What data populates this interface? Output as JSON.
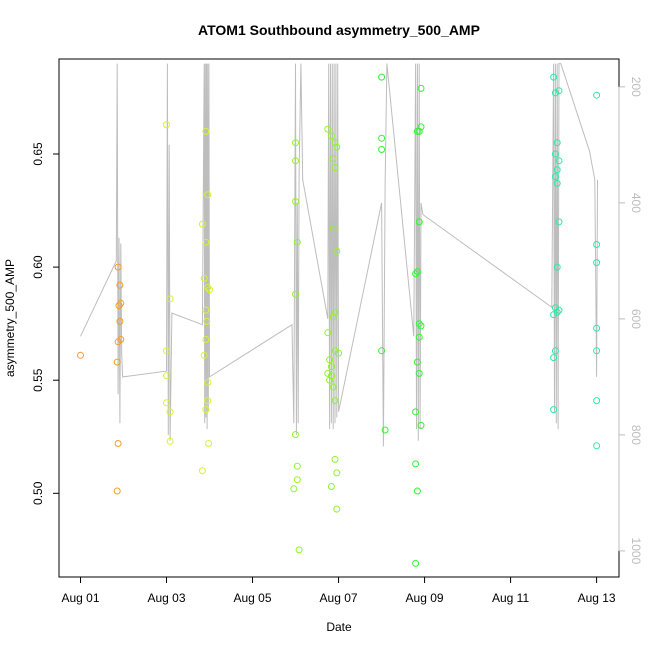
{
  "chart_data": {
    "type": "scatter",
    "title": "ATOM1 Southbound asymmetry_500_AMP",
    "xlabel": "Date",
    "ylabel": "asymmetry_500_AMP",
    "x_axis": {
      "type": "date",
      "range": [
        "2024-07-31T12:00",
        "2024-08-13T12:30"
      ],
      "ticks": [
        {
          "date": "2024-08-01",
          "label": "Aug 01"
        },
        {
          "date": "2024-08-03",
          "label": "Aug 03"
        },
        {
          "date": "2024-08-05",
          "label": "Aug 05"
        },
        {
          "date": "2024-08-07",
          "label": "Aug 07"
        },
        {
          "date": "2024-08-09",
          "label": "Aug 09"
        },
        {
          "date": "2024-08-11",
          "label": "Aug 11"
        },
        {
          "date": "2024-08-13",
          "label": "Aug 13"
        }
      ]
    },
    "y_axis": {
      "range": [
        0.463,
        0.692
      ],
      "ticks": [
        {
          "value": 0.5,
          "label": "0.50"
        },
        {
          "value": 0.55,
          "label": "0.55"
        },
        {
          "value": 0.6,
          "label": "0.60"
        },
        {
          "value": 0.65,
          "label": "0.65"
        }
      ]
    },
    "y2_axis": {
      "range": [
        1045,
        152
      ],
      "inverted": true,
      "color": "#bdbdbd",
      "ticks": [
        {
          "value": 200,
          "label": "200"
        },
        {
          "value": 400,
          "label": "400"
        },
        {
          "value": 600,
          "label": "600"
        },
        {
          "value": 800,
          "label": "800"
        },
        {
          "value": 1000,
          "label": "1000"
        }
      ]
    },
    "series": [
      {
        "color": "#f39c2e",
        "points": [
          [
            "2024-08-01T00:00",
            0.561
          ],
          [
            "2024-08-01T21:00",
            0.6
          ],
          [
            "2024-08-01T21:30",
            0.583
          ],
          [
            "2024-08-01T22:00",
            0.592
          ],
          [
            "2024-08-01T22:30",
            0.584
          ],
          [
            "2024-08-01T22:00",
            0.576
          ],
          [
            "2024-08-01T22:30",
            0.568
          ],
          [
            "2024-08-01T21:00",
            0.567
          ],
          [
            "2024-08-01T20:30",
            0.558
          ],
          [
            "2024-08-01T21:00",
            0.522
          ],
          [
            "2024-08-01T20:30",
            0.501
          ]
        ]
      },
      {
        "color": "#d4f52b",
        "points": [
          [
            "2024-08-03T00:00",
            0.663
          ],
          [
            "2024-08-03T00:00",
            0.563
          ],
          [
            "2024-08-03T00:00",
            0.552
          ],
          [
            "2024-08-03T02:00",
            0.586
          ],
          [
            "2024-08-03T00:00",
            0.54
          ],
          [
            "2024-08-03T02:00",
            0.536
          ],
          [
            "2024-08-03T02:00",
            0.523
          ],
          [
            "2024-08-03T20:00",
            0.51
          ],
          [
            "2024-08-03T22:00",
            0.66
          ],
          [
            "2024-08-03T23:00",
            0.632
          ],
          [
            "2024-08-03T20:00",
            0.619
          ],
          [
            "2024-08-03T22:00",
            0.611
          ],
          [
            "2024-08-03T21:00",
            0.595
          ],
          [
            "2024-08-03T23:00",
            0.591
          ],
          [
            "2024-08-03T22:00",
            0.581
          ],
          [
            "2024-08-03T22:30",
            0.576
          ],
          [
            "2024-08-03T22:00",
            0.568
          ],
          [
            "2024-08-03T21:00",
            0.561
          ],
          [
            "2024-08-03T23:00",
            0.549
          ],
          [
            "2024-08-03T23:00",
            0.541
          ],
          [
            "2024-08-03T22:00",
            0.537
          ],
          [
            "2024-08-03T23:30",
            0.522
          ],
          [
            "2024-08-04T00:00",
            0.59
          ]
        ]
      },
      {
        "color": "#8ff42b",
        "points": [
          [
            "2024-08-06T00:00",
            0.655
          ],
          [
            "2024-08-06T00:00",
            0.647
          ],
          [
            "2024-08-06T00:00",
            0.629
          ],
          [
            "2024-08-06T01:00",
            0.611
          ],
          [
            "2024-08-06T00:00",
            0.588
          ],
          [
            "2024-08-06T00:00",
            0.526
          ],
          [
            "2024-08-06T01:00",
            0.512
          ],
          [
            "2024-08-06T01:00",
            0.506
          ],
          [
            "2024-08-05T23:00",
            0.502
          ],
          [
            "2024-08-06T02:00",
            0.475
          ],
          [
            "2024-08-06T18:00",
            0.661
          ],
          [
            "2024-08-06T20:00",
            0.658
          ],
          [
            "2024-08-06T22:00",
            0.655
          ],
          [
            "2024-08-06T23:00",
            0.653
          ],
          [
            "2024-08-06T21:00",
            0.648
          ],
          [
            "2024-08-06T22:00",
            0.644
          ],
          [
            "2024-08-06T21:00",
            0.617
          ],
          [
            "2024-08-06T23:00",
            0.607
          ],
          [
            "2024-08-06T22:00",
            0.58
          ],
          [
            "2024-08-06T21:00",
            0.578
          ],
          [
            "2024-08-06T18:00",
            0.571
          ],
          [
            "2024-08-06T22:00",
            0.563
          ],
          [
            "2024-08-07T00:00",
            0.562
          ],
          [
            "2024-08-06T19:00",
            0.559
          ],
          [
            "2024-08-06T20:00",
            0.556
          ],
          [
            "2024-08-06T18:00",
            0.553
          ],
          [
            "2024-08-06T20:00",
            0.552
          ],
          [
            "2024-08-06T19:00",
            0.55
          ],
          [
            "2024-08-06T21:00",
            0.547
          ],
          [
            "2024-08-06T22:00",
            0.541
          ],
          [
            "2024-08-06T22:00",
            0.515
          ],
          [
            "2024-08-06T23:00",
            0.509
          ],
          [
            "2024-08-06T20:00",
            0.503
          ],
          [
            "2024-08-06T23:00",
            0.493
          ]
        ]
      },
      {
        "color": "#37f036",
        "points": [
          [
            "2024-08-08T00:00",
            0.684
          ],
          [
            "2024-08-08T00:00",
            0.657
          ],
          [
            "2024-08-08T00:00",
            0.652
          ],
          [
            "2024-08-08T00:00",
            0.563
          ],
          [
            "2024-08-08T02:00",
            0.528
          ],
          [
            "2024-08-08T22:00",
            0.679
          ],
          [
            "2024-08-08T22:00",
            0.662
          ],
          [
            "2024-08-08T20:00",
            0.66
          ],
          [
            "2024-08-08T21:00",
            0.66
          ],
          [
            "2024-08-08T21:00",
            0.62
          ],
          [
            "2024-08-08T19:00",
            0.597
          ],
          [
            "2024-08-08T20:00",
            0.598
          ],
          [
            "2024-08-08T21:00",
            0.575
          ],
          [
            "2024-08-08T22:00",
            0.574
          ],
          [
            "2024-08-08T21:00",
            0.569
          ],
          [
            "2024-08-08T20:00",
            0.558
          ],
          [
            "2024-08-08T21:00",
            0.553
          ],
          [
            "2024-08-08T19:00",
            0.536
          ],
          [
            "2024-08-08T22:00",
            0.53
          ],
          [
            "2024-08-08T19:00",
            0.513
          ],
          [
            "2024-08-08T20:00",
            0.501
          ],
          [
            "2024-08-08T19:00",
            0.469
          ]
        ]
      },
      {
        "color": "#2fe8a8",
        "points": [
          [
            "2024-08-12T00:00",
            0.684
          ],
          [
            "2024-08-12T01:00",
            0.677
          ],
          [
            "2024-08-12T03:00",
            0.678
          ],
          [
            "2024-08-12T02:00",
            0.655
          ],
          [
            "2024-08-12T01:00",
            0.65
          ],
          [
            "2024-08-12T03:00",
            0.647
          ],
          [
            "2024-08-12T02:00",
            0.643
          ],
          [
            "2024-08-12T01:00",
            0.64
          ],
          [
            "2024-08-12T02:00",
            0.637
          ],
          [
            "2024-08-12T03:00",
            0.62
          ],
          [
            "2024-08-12T02:00",
            0.6
          ],
          [
            "2024-08-12T01:00",
            0.582
          ],
          [
            "2024-08-12T00:00",
            0.579
          ],
          [
            "2024-08-12T03:00",
            0.581
          ],
          [
            "2024-08-12T02:00",
            0.58
          ],
          [
            "2024-08-12T01:00",
            0.563
          ],
          [
            "2024-08-12T00:00",
            0.56
          ],
          [
            "2024-08-12T00:00",
            0.537
          ],
          [
            "2024-08-13T00:00",
            0.676
          ],
          [
            "2024-08-13T00:00",
            0.61
          ],
          [
            "2024-08-13T00:00",
            0.602
          ],
          [
            "2024-08-13T00:00",
            0.573
          ],
          [
            "2024-08-13T00:00",
            0.563
          ],
          [
            "2024-08-13T00:00",
            0.541
          ],
          [
            "2024-08-13T00:00",
            0.521
          ]
        ]
      }
    ],
    "secondary_line": {
      "color": "#bdbdbd",
      "axis": "y2",
      "points": [
        [
          "2024-08-01T00:00",
          630
        ],
        [
          "2024-08-01T20:00",
          500
        ],
        [
          "2024-08-01T20:30",
          160
        ],
        [
          "2024-08-01T21:00",
          730
        ],
        [
          "2024-08-01T21:30",
          460
        ],
        [
          "2024-08-01T22:00",
          780
        ],
        [
          "2024-08-01T22:30",
          470
        ],
        [
          "2024-08-01T23:00",
          660
        ],
        [
          "2024-08-01T23:30",
          700
        ],
        [
          "2024-08-03T00:00",
          690
        ],
        [
          "2024-08-03T00:30",
          160
        ],
        [
          "2024-08-03T01:00",
          800
        ],
        [
          "2024-08-03T01:30",
          300
        ],
        [
          "2024-08-03T02:00",
          810
        ],
        [
          "2024-08-03T03:00",
          590
        ],
        [
          "2024-08-03T20:00",
          610
        ],
        [
          "2024-08-03T21:00",
          160
        ],
        [
          "2024-08-03T21:20",
          780
        ],
        [
          "2024-08-03T21:40",
          160
        ],
        [
          "2024-08-03T22:00",
          770
        ],
        [
          "2024-08-03T22:20",
          160
        ],
        [
          "2024-08-03T22:40",
          790
        ],
        [
          "2024-08-03T23:00",
          160
        ],
        [
          "2024-08-03T23:20",
          760
        ],
        [
          "2024-08-03T23:40",
          160
        ],
        [
          "2024-08-04T00:00",
          700
        ],
        [
          "2024-08-05T22:00",
          610
        ],
        [
          "2024-08-05T23:00",
          780
        ],
        [
          "2024-08-06T00:00",
          160
        ],
        [
          "2024-08-06T00:30",
          800
        ],
        [
          "2024-08-06T01:00",
          400
        ],
        [
          "2024-08-06T01:30",
          780
        ],
        [
          "2024-08-06T02:00",
          350
        ],
        [
          "2024-08-06T03:00",
          160
        ],
        [
          "2024-08-06T04:00",
          360
        ],
        [
          "2024-08-06T18:00",
          600
        ],
        [
          "2024-08-06T18:30",
          160
        ],
        [
          "2024-08-06T19:00",
          790
        ],
        [
          "2024-08-06T19:30",
          160
        ],
        [
          "2024-08-06T20:00",
          780
        ],
        [
          "2024-08-06T20:30",
          160
        ],
        [
          "2024-08-06T21:00",
          790
        ],
        [
          "2024-08-06T21:30",
          160
        ],
        [
          "2024-08-06T22:00",
          780
        ],
        [
          "2024-08-06T22:30",
          160
        ],
        [
          "2024-08-06T23:00",
          770
        ],
        [
          "2024-08-06T23:30",
          160
        ],
        [
          "2024-08-07T00:00",
          760
        ],
        [
          "2024-08-08T00:00",
          400
        ],
        [
          "2024-08-08T01:00",
          820
        ],
        [
          "2024-08-08T02:00",
          370
        ],
        [
          "2024-08-08T03:00",
          160
        ],
        [
          "2024-08-08T18:00",
          630
        ],
        [
          "2024-08-08T19:00",
          160
        ],
        [
          "2024-08-08T19:30",
          790
        ],
        [
          "2024-08-08T20:00",
          160
        ],
        [
          "2024-08-08T20:30",
          810
        ],
        [
          "2024-08-08T21:00",
          160
        ],
        [
          "2024-08-08T21:30",
          790
        ],
        [
          "2024-08-08T22:00",
          400
        ],
        [
          "2024-08-08T23:00",
          420
        ],
        [
          "2024-08-11T23:00",
          580
        ],
        [
          "2024-08-12T00:00",
          160
        ],
        [
          "2024-08-12T00:30",
          760
        ],
        [
          "2024-08-12T01:00",
          160
        ],
        [
          "2024-08-12T01:30",
          780
        ],
        [
          "2024-08-12T02:00",
          160
        ],
        [
          "2024-08-12T02:30",
          790
        ],
        [
          "2024-08-12T03:00",
          160
        ],
        [
          "2024-08-12T04:00",
          160
        ],
        [
          "2024-08-12T20:00",
          310
        ],
        [
          "2024-08-12T23:00",
          360
        ],
        [
          "2024-08-13T00:00",
          700
        ],
        [
          "2024-08-13T00:30",
          360
        ]
      ]
    },
    "grid": false,
    "legend": "none"
  }
}
